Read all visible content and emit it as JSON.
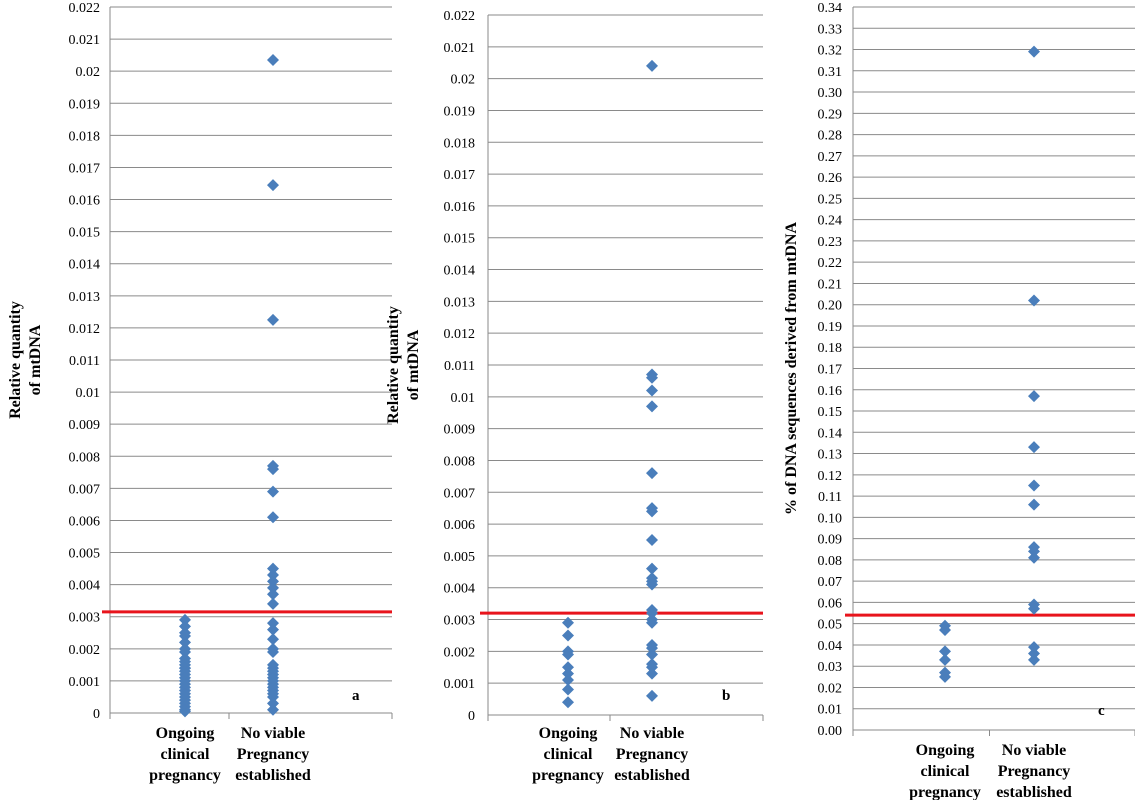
{
  "chart_data": [
    {
      "type": "scatter",
      "panel_label": "a",
      "ylabel_lines": [
        "Relative quantity",
        "of mtDNA"
      ],
      "categories": [
        [
          "Ongoing",
          "clinical",
          "pregnancy"
        ],
        [
          "No viable",
          "Pregnancy",
          "established"
        ]
      ],
      "ylim": [
        0,
        0.022
      ],
      "ytick_step": 0.001,
      "ytick_decimals": 0,
      "grid": "horizontal",
      "threshold": 0.00315,
      "threshold_color": "#e8141c",
      "marker_color": "#4a7ebb",
      "series": [
        {
          "category": 0,
          "values": [
            0.0029,
            0.0027,
            0.0025,
            0.0024,
            0.0022,
            0.002,
            0.0019,
            0.0017,
            0.0016,
            0.0015,
            0.0014,
            0.0014,
            0.0013,
            0.0012,
            0.0011,
            0.001,
            0.0009,
            0.0008,
            0.0007,
            0.0006,
            0.0005,
            0.0004,
            0.0003,
            0.0002,
            0.0001,
            5e-05
          ]
        },
        {
          "category": 1,
          "values": [
            0.02035,
            0.01645,
            0.01225,
            0.0077,
            0.0076,
            0.0069,
            0.0061,
            0.0045,
            0.0043,
            0.0041,
            0.0039,
            0.0037,
            0.0034,
            0.0028,
            0.0026,
            0.0023,
            0.002,
            0.0019,
            0.0015,
            0.0014,
            0.0013,
            0.0012,
            0.0011,
            0.001,
            0.0009,
            0.0008,
            0.0007,
            0.0006,
            0.0005,
            0.0003,
            0.0001
          ]
        }
      ]
    },
    {
      "type": "scatter",
      "panel_label": "b",
      "ylabel_lines": [
        "Relative quantity",
        "of mtDNA"
      ],
      "categories": [
        [
          "Ongoing",
          "clinical",
          "pregnancy"
        ],
        [
          "No viable",
          "Pregnancy",
          "established"
        ]
      ],
      "ylim": [
        0,
        0.022
      ],
      "ytick_step": 0.001,
      "ytick_decimals": 0,
      "grid": "horizontal",
      "threshold": 0.0032,
      "threshold_color": "#e8141c",
      "marker_color": "#4a7ebb",
      "series": [
        {
          "category": 0,
          "values": [
            0.0029,
            0.0025,
            0.002,
            0.0019,
            0.0015,
            0.0013,
            0.0011,
            0.0008,
            0.0004
          ]
        },
        {
          "category": 1,
          "values": [
            0.0204,
            0.0107,
            0.0106,
            0.0102,
            0.0097,
            0.0076,
            0.0065,
            0.0064,
            0.0055,
            0.0046,
            0.0043,
            0.0042,
            0.0041,
            0.0033,
            0.0032,
            0.003,
            0.0029,
            0.0022,
            0.0021,
            0.0019,
            0.0016,
            0.0015,
            0.0013,
            0.0006
          ]
        }
      ]
    },
    {
      "type": "scatter",
      "panel_label": "c",
      "ylabel_lines": [
        "% of DNA sequences derived from  mtDNA"
      ],
      "categories": [
        [
          "Ongoing",
          "clinical",
          "pregnancy"
        ],
        [
          "No viable",
          "Pregnancy",
          "established"
        ]
      ],
      "ylim": [
        0,
        0.34
      ],
      "ytick_step": 0.01,
      "ytick_decimals": 2,
      "grid": "horizontal",
      "threshold": 0.054,
      "threshold_color": "#e8141c",
      "marker_color": "#4a7ebb",
      "series": [
        {
          "category": 0,
          "values": [
            0.049,
            0.047,
            0.037,
            0.033,
            0.027,
            0.025
          ]
        },
        {
          "category": 1,
          "values": [
            0.319,
            0.202,
            0.157,
            0.133,
            0.115,
            0.106,
            0.086,
            0.084,
            0.081,
            0.059,
            0.057,
            0.039,
            0.036,
            0.033
          ]
        }
      ]
    }
  ]
}
